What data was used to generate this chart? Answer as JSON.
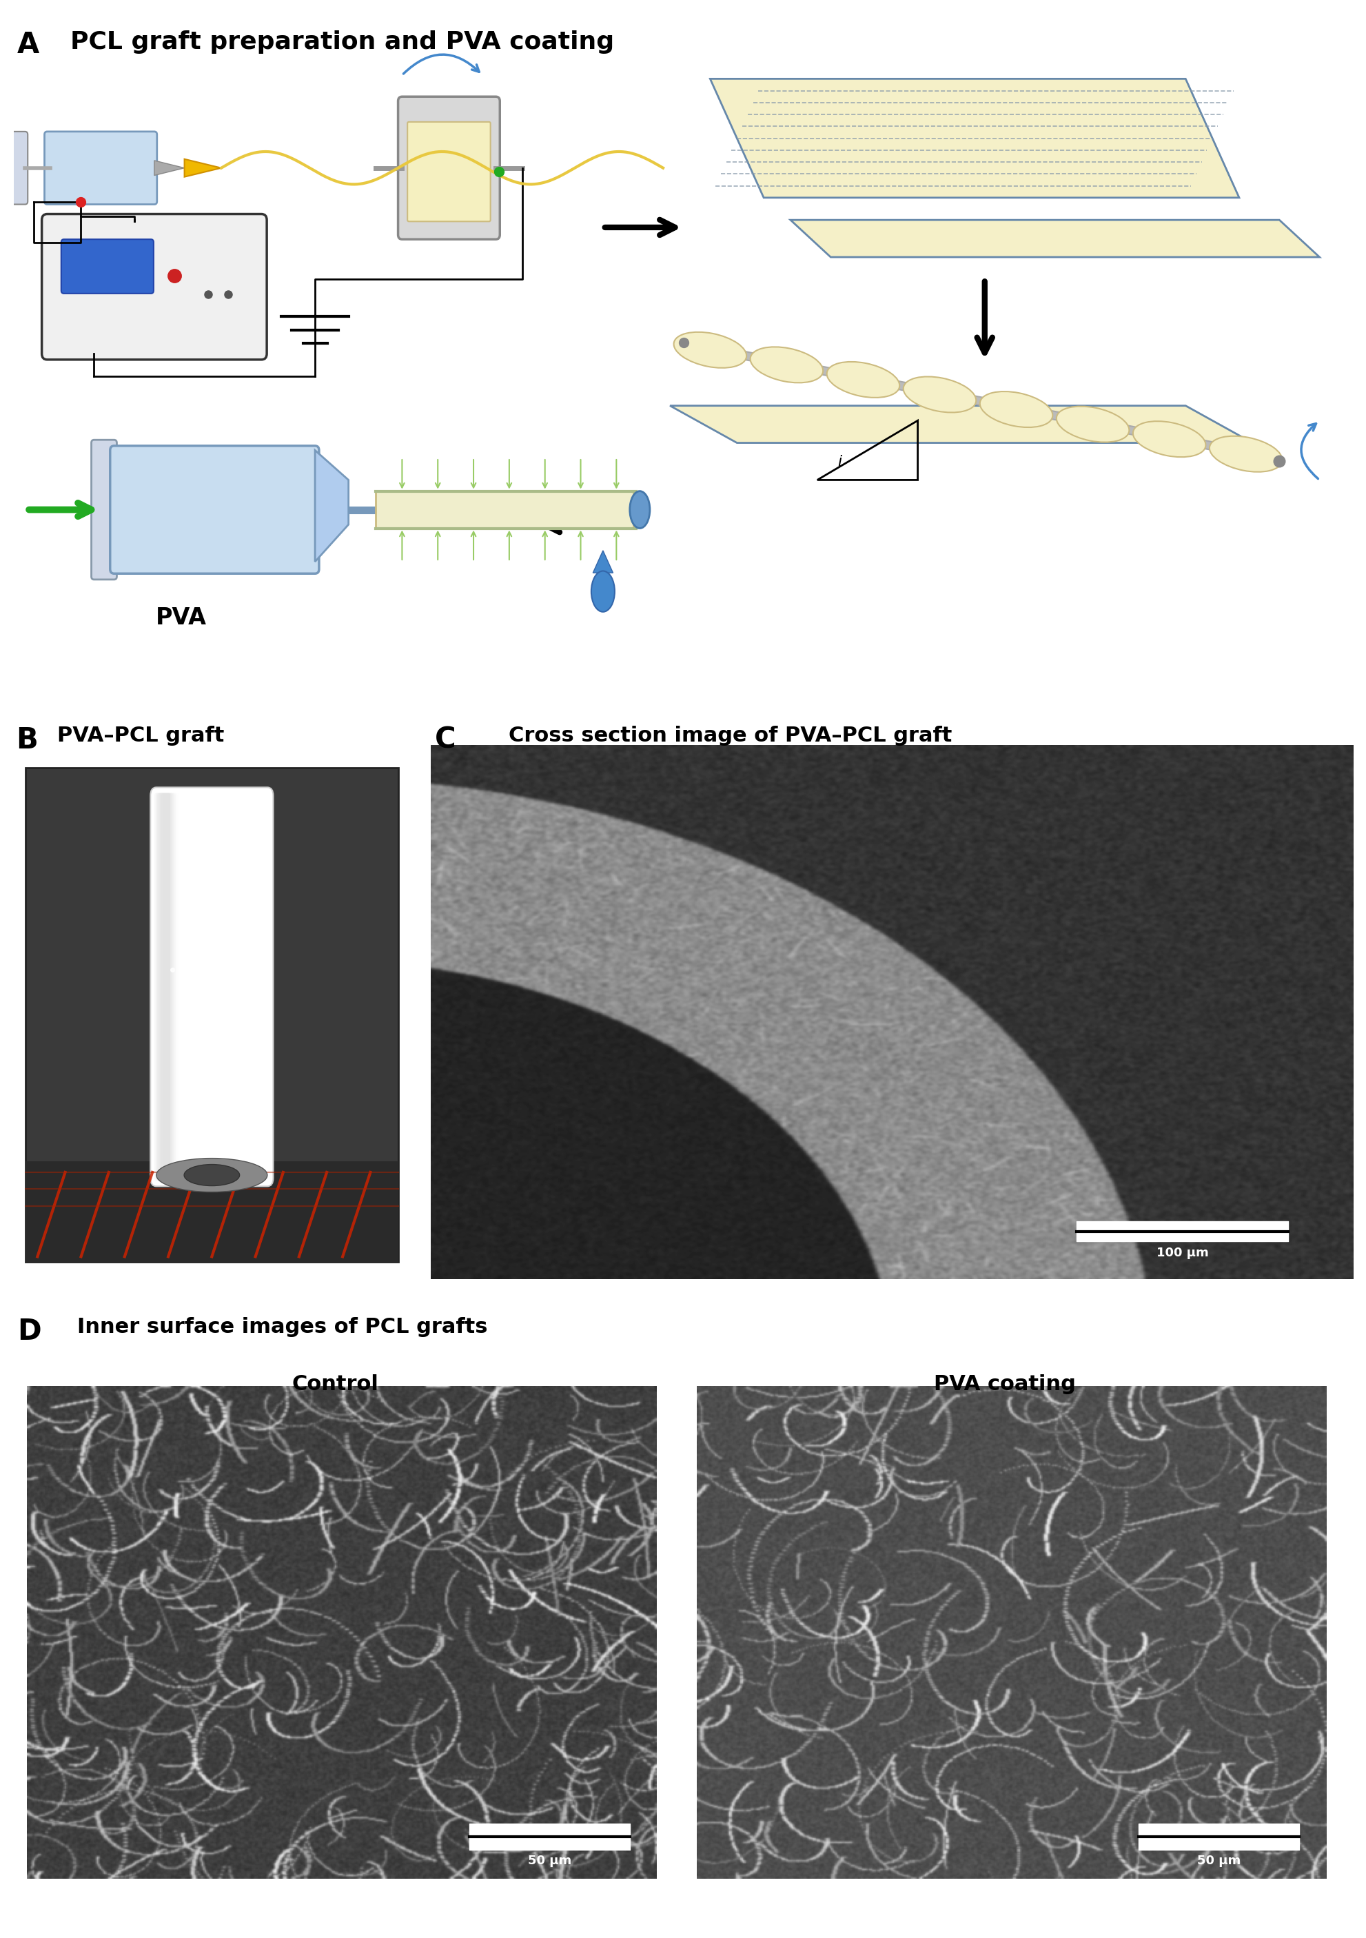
{
  "panel_A_label": "A",
  "panel_A_title": "PCL graft preparation and PVA coating",
  "panel_B_label": "B",
  "panel_B_title": "PVA–PCL graft",
  "panel_C_label": "C",
  "panel_C_title": "Cross section image of PVA–PCL graft",
  "panel_D_label": "D",
  "panel_D_title": "Inner surface images of PCL grafts",
  "panel_D_sub1": "Control",
  "panel_D_sub2": "PVA coating",
  "scale_bar_C": "100 μm",
  "scale_bar_D1": "50 μm",
  "scale_bar_D2": "50 μm",
  "bg_color": "#ffffff"
}
